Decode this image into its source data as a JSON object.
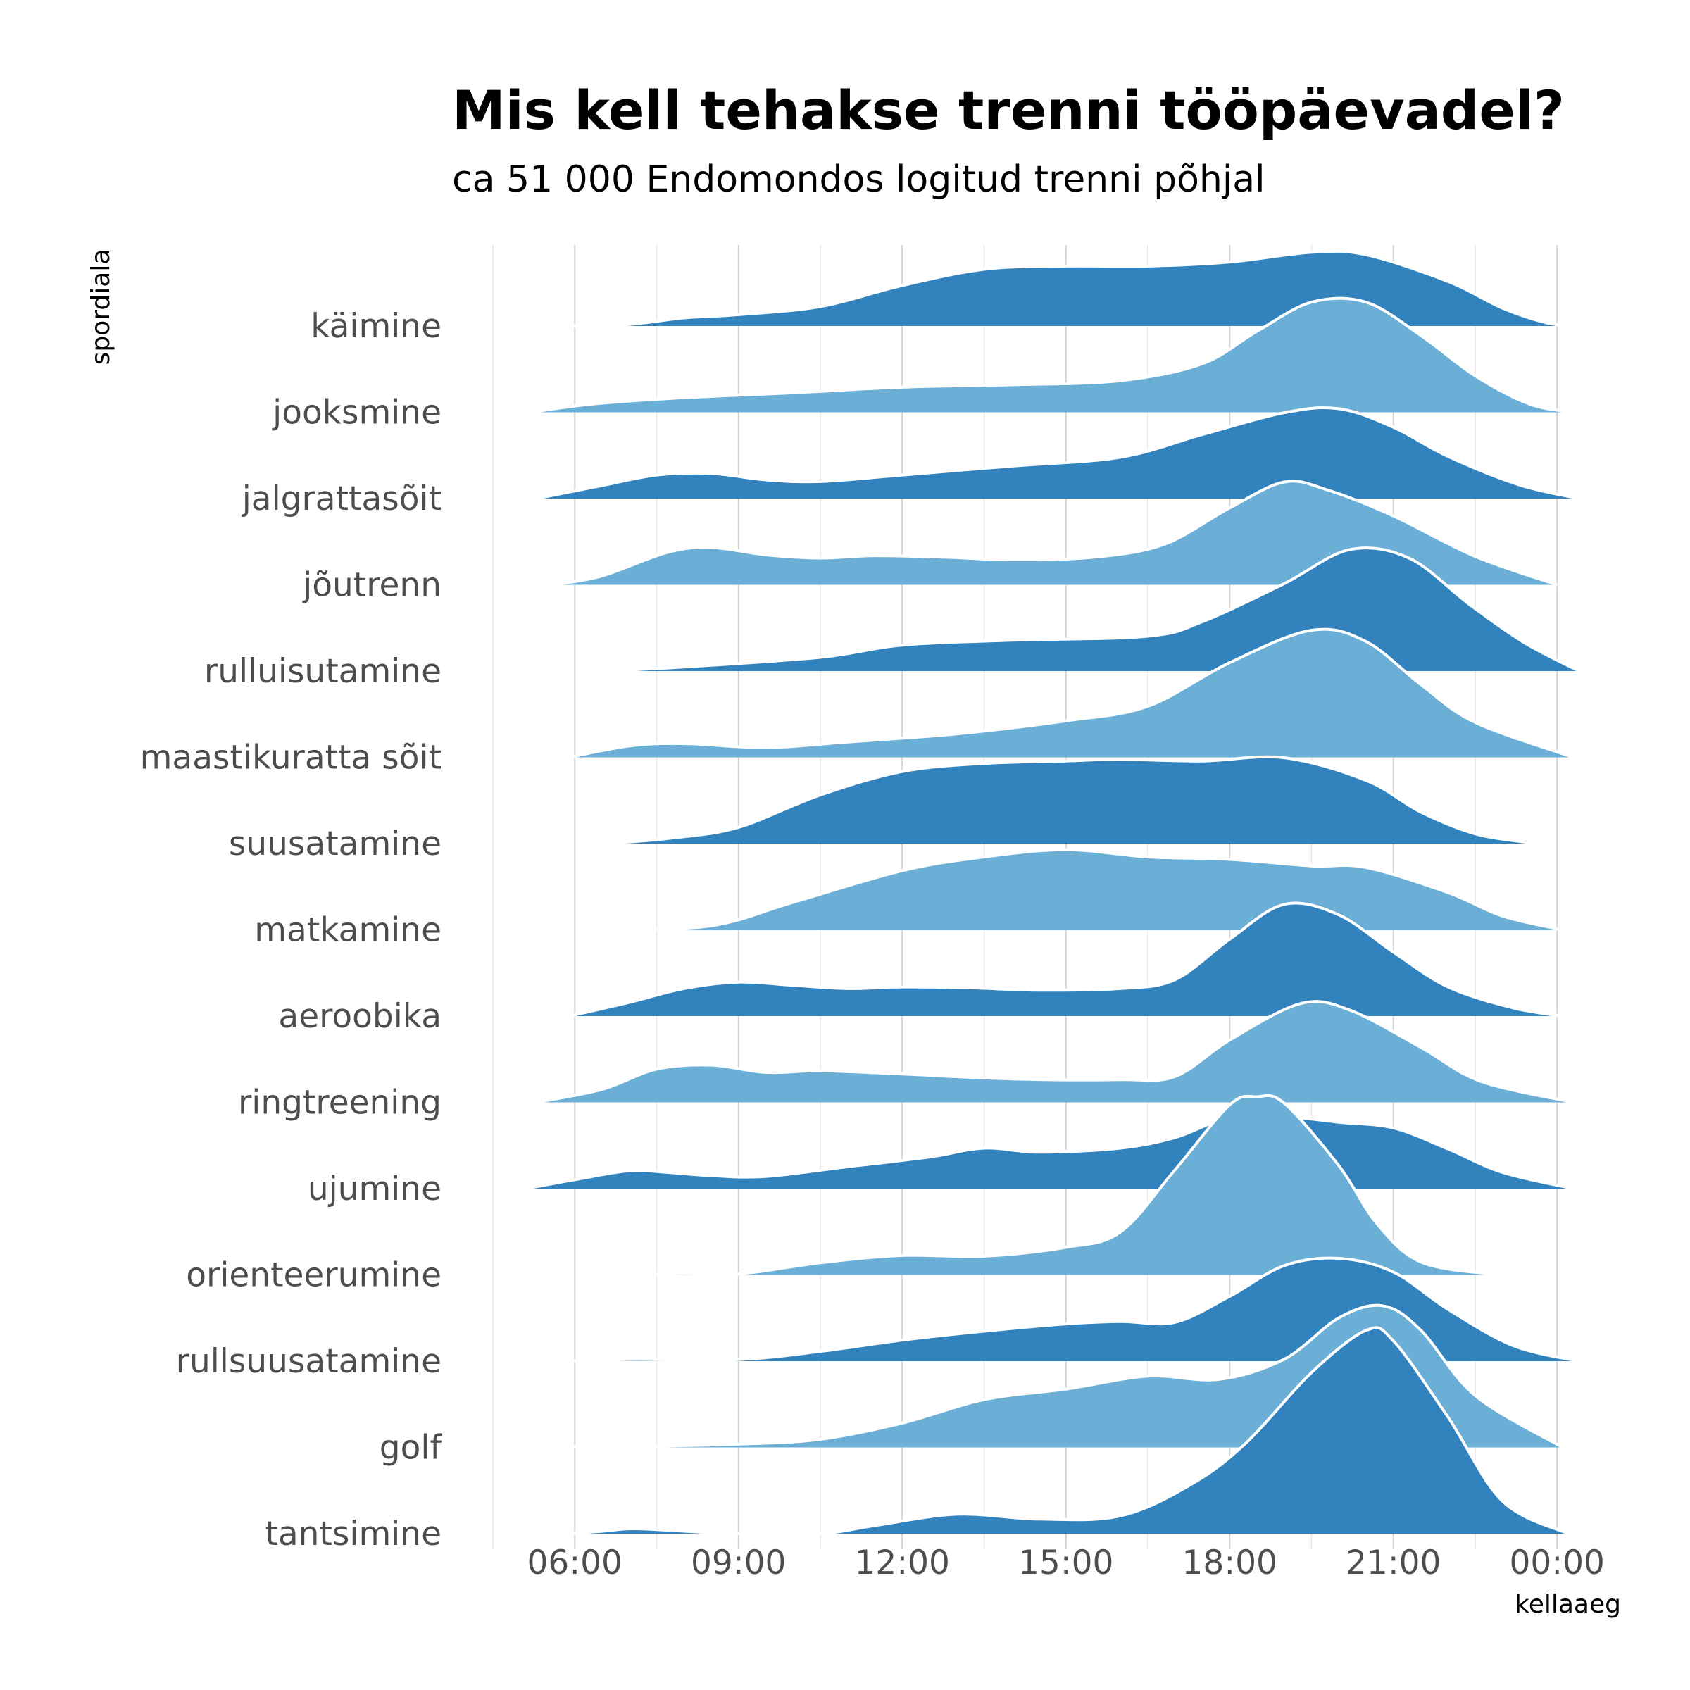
{
  "chart_data": {
    "type": "ridgeline",
    "title": "Mis kell tehakse trenni tööpäevadel?",
    "subtitle": "ca 51 000 Endomondos logitud trenni põhjal",
    "xlabel": "kellaaeg",
    "ylabel": "spordiala",
    "x_ticks": [
      "06:00",
      "09:00",
      "12:00",
      "15:00",
      "18:00",
      "21:00",
      "00:00"
    ],
    "x_tick_hours": [
      6,
      9,
      12,
      15,
      18,
      21,
      24
    ],
    "xlim_hours": [
      4.5,
      24.5
    ],
    "grid": true,
    "colors": {
      "dark": "#3182bd",
      "light": "#6baed6",
      "outline": "#ffffff"
    },
    "series": [
      {
        "name": "käimine",
        "fill": "dark",
        "points": [
          [
            5.9,
            0
          ],
          [
            7,
            0.02
          ],
          [
            8,
            0.1
          ],
          [
            9,
            0.14
          ],
          [
            10.5,
            0.24
          ],
          [
            12,
            0.5
          ],
          [
            13.5,
            0.7
          ],
          [
            15,
            0.74
          ],
          [
            16.5,
            0.74
          ],
          [
            18,
            0.79
          ],
          [
            19.5,
            0.91
          ],
          [
            20.5,
            0.88
          ],
          [
            22,
            0.55
          ],
          [
            23,
            0.22
          ],
          [
            23.8,
            0.04
          ],
          [
            24.3,
            0
          ]
        ]
      },
      {
        "name": "jooksmine",
        "fill": "light",
        "points": [
          [
            5.2,
            0
          ],
          [
            6.3,
            0.1
          ],
          [
            8,
            0.18
          ],
          [
            10,
            0.24
          ],
          [
            12,
            0.31
          ],
          [
            14,
            0.34
          ],
          [
            16,
            0.39
          ],
          [
            17.5,
            0.6
          ],
          [
            18.5,
            1.0
          ],
          [
            19.5,
            1.36
          ],
          [
            20.5,
            1.36
          ],
          [
            21.5,
            0.95
          ],
          [
            22.5,
            0.45
          ],
          [
            23.5,
            0.1
          ],
          [
            24.3,
            0
          ]
        ]
      },
      {
        "name": "jalgrattasõit",
        "fill": "dark",
        "points": [
          [
            5.3,
            0
          ],
          [
            6.5,
            0.16
          ],
          [
            7.5,
            0.29
          ],
          [
            8.5,
            0.31
          ],
          [
            9.5,
            0.23
          ],
          [
            10.5,
            0.21
          ],
          [
            12,
            0.29
          ],
          [
            14,
            0.4
          ],
          [
            16,
            0.51
          ],
          [
            17.5,
            0.79
          ],
          [
            19,
            1.06
          ],
          [
            20,
            1.11
          ],
          [
            21,
            0.88
          ],
          [
            22,
            0.52
          ],
          [
            23.3,
            0.17
          ],
          [
            24.4,
            0
          ]
        ]
      },
      {
        "name": "jõutrenn",
        "fill": "light",
        "points": [
          [
            5.6,
            0
          ],
          [
            6.5,
            0.11
          ],
          [
            7.7,
            0.4
          ],
          [
            8.5,
            0.46
          ],
          [
            9.5,
            0.37
          ],
          [
            10.5,
            0.33
          ],
          [
            11.5,
            0.36
          ],
          [
            12.8,
            0.34
          ],
          [
            14,
            0.31
          ],
          [
            15.5,
            0.34
          ],
          [
            16.8,
            0.5
          ],
          [
            18,
            0.95
          ],
          [
            19,
            1.27
          ],
          [
            19.8,
            1.17
          ],
          [
            21,
            0.85
          ],
          [
            22.5,
            0.35
          ],
          [
            24,
            0
          ]
        ]
      },
      {
        "name": "rulluisutamine",
        "fill": "dark",
        "points": [
          [
            6.6,
            0
          ],
          [
            8,
            0.05
          ],
          [
            10.5,
            0.17
          ],
          [
            12,
            0.32
          ],
          [
            14,
            0.38
          ],
          [
            16.5,
            0.43
          ],
          [
            17.5,
            0.61
          ],
          [
            19,
            1.08
          ],
          [
            20.2,
            1.5
          ],
          [
            21.3,
            1.39
          ],
          [
            22.4,
            0.82
          ],
          [
            23.4,
            0.35
          ],
          [
            24.4,
            0
          ]
        ]
      },
      {
        "name": "maastikuratta sõit",
        "fill": "light",
        "points": [
          [
            5.9,
            0
          ],
          [
            7,
            0.14
          ],
          [
            8,
            0.17
          ],
          [
            9.5,
            0.12
          ],
          [
            11,
            0.19
          ],
          [
            13,
            0.29
          ],
          [
            15,
            0.45
          ],
          [
            16.5,
            0.63
          ],
          [
            18,
            1.17
          ],
          [
            19.5,
            1.57
          ],
          [
            20.5,
            1.43
          ],
          [
            21.5,
            0.9
          ],
          [
            22.5,
            0.43
          ],
          [
            24.3,
            0
          ]
        ]
      },
      {
        "name": "suusatamine",
        "fill": "dark",
        "points": [
          [
            6.6,
            0
          ],
          [
            7.8,
            0.07
          ],
          [
            9,
            0.2
          ],
          [
            10.5,
            0.6
          ],
          [
            12,
            0.89
          ],
          [
            13.5,
            0.99
          ],
          [
            15,
            1.02
          ],
          [
            16,
            1.04
          ],
          [
            17.5,
            1.02
          ],
          [
            19,
            1.06
          ],
          [
            20.5,
            0.78
          ],
          [
            21.5,
            0.39
          ],
          [
            22.5,
            0.12
          ],
          [
            23.5,
            0.01
          ],
          [
            23.7,
            0
          ]
        ]
      },
      {
        "name": "matkamine",
        "fill": "light",
        "points": [
          [
            6.6,
            0
          ],
          [
            8.5,
            0.05
          ],
          [
            10,
            0.34
          ],
          [
            12,
            0.73
          ],
          [
            13.5,
            0.9
          ],
          [
            15,
            0.99
          ],
          [
            16.5,
            0.9
          ],
          [
            18,
            0.87
          ],
          [
            19.5,
            0.79
          ],
          [
            20.5,
            0.77
          ],
          [
            22,
            0.46
          ],
          [
            23,
            0.17
          ],
          [
            24.1,
            0
          ]
        ]
      },
      {
        "name": "aeroobika",
        "fill": "dark",
        "points": [
          [
            5.9,
            0
          ],
          [
            7,
            0.17
          ],
          [
            8,
            0.34
          ],
          [
            9,
            0.42
          ],
          [
            10,
            0.38
          ],
          [
            11,
            0.34
          ],
          [
            12,
            0.36
          ],
          [
            13.2,
            0.35
          ],
          [
            14.5,
            0.32
          ],
          [
            16,
            0.34
          ],
          [
            17,
            0.45
          ],
          [
            18,
            0.95
          ],
          [
            19,
            1.38
          ],
          [
            20,
            1.25
          ],
          [
            21,
            0.79
          ],
          [
            22,
            0.36
          ],
          [
            23.2,
            0.1
          ],
          [
            24.1,
            0
          ]
        ]
      },
      {
        "name": "ringtreening",
        "fill": "light",
        "points": [
          [
            5.3,
            0
          ],
          [
            6.5,
            0.16
          ],
          [
            7.5,
            0.41
          ],
          [
            8.5,
            0.46
          ],
          [
            9.5,
            0.37
          ],
          [
            10.5,
            0.39
          ],
          [
            12,
            0.35
          ],
          [
            14,
            0.29
          ],
          [
            16,
            0.28
          ],
          [
            17,
            0.32
          ],
          [
            18,
            0.77
          ],
          [
            19.3,
            1.22
          ],
          [
            20.2,
            1.14
          ],
          [
            21.5,
            0.68
          ],
          [
            22.6,
            0.26
          ],
          [
            24.3,
            0
          ]
        ]
      },
      {
        "name": "ujumine",
        "fill": "dark",
        "points": [
          [
            5.1,
            0
          ],
          [
            6,
            0.11
          ],
          [
            7,
            0.22
          ],
          [
            7.7,
            0.2
          ],
          [
            8.5,
            0.16
          ],
          [
            9.5,
            0.15
          ],
          [
            11,
            0.27
          ],
          [
            12.5,
            0.39
          ],
          [
            13.5,
            0.5
          ],
          [
            14.5,
            0.45
          ],
          [
            16,
            0.5
          ],
          [
            17,
            0.63
          ],
          [
            18,
            0.88
          ],
          [
            19,
            0.89
          ],
          [
            20,
            0.82
          ],
          [
            21,
            0.75
          ],
          [
            22,
            0.49
          ],
          [
            23,
            0.2
          ],
          [
            24.3,
            0
          ]
        ]
      },
      {
        "name": "orienteerumine",
        "fill": "light",
        "points": [
          [
            6.6,
            0
          ],
          [
            8,
            0.02
          ],
          [
            9,
            0.01
          ],
          [
            10.5,
            0.15
          ],
          [
            12,
            0.24
          ],
          [
            13.5,
            0.23
          ],
          [
            15,
            0.34
          ],
          [
            16,
            0.53
          ],
          [
            17,
            1.3
          ],
          [
            18,
            2.1
          ],
          [
            18.5,
            2.2
          ],
          [
            19,
            2.12
          ],
          [
            20,
            1.35
          ],
          [
            20.7,
            0.63
          ],
          [
            21.5,
            0.16
          ],
          [
            22.8,
            0.01
          ],
          [
            23.3,
            0
          ]
        ]
      },
      {
        "name": "rullsuusatamine",
        "fill": "dark",
        "points": [
          [
            5.9,
            0
          ],
          [
            7,
            0.02
          ],
          [
            9,
            0.02
          ],
          [
            10.5,
            0.12
          ],
          [
            12,
            0.26
          ],
          [
            13.5,
            0.37
          ],
          [
            15,
            0.46
          ],
          [
            16,
            0.49
          ],
          [
            17,
            0.48
          ],
          [
            18,
            0.8
          ],
          [
            19,
            1.18
          ],
          [
            20,
            1.27
          ],
          [
            21,
            1.1
          ],
          [
            22,
            0.64
          ],
          [
            23.2,
            0.19
          ],
          [
            24.4,
            0
          ]
        ]
      },
      {
        "name": "golf",
        "fill": "light",
        "points": [
          [
            5.0,
            0
          ],
          [
            6,
            0.01
          ],
          [
            7,
            0.01
          ],
          [
            9,
            0.04
          ],
          [
            10.5,
            0.1
          ],
          [
            12,
            0.3
          ],
          [
            13.5,
            0.59
          ],
          [
            15,
            0.72
          ],
          [
            16.5,
            0.88
          ],
          [
            17.8,
            0.84
          ],
          [
            19,
            1.09
          ],
          [
            20,
            1.6
          ],
          [
            20.8,
            1.75
          ],
          [
            21.5,
            1.45
          ],
          [
            22.5,
            0.64
          ],
          [
            24.1,
            0
          ]
        ]
      },
      {
        "name": "tantsimine",
        "fill": "dark",
        "points": [
          [
            5.9,
            0
          ],
          [
            6.5,
            0.03
          ],
          [
            7,
            0.06
          ],
          [
            7.5,
            0.05
          ],
          [
            8.5,
            0.01
          ],
          [
            9,
            0
          ],
          [
            10.5,
            0
          ],
          [
            11.5,
            0.1
          ],
          [
            13,
            0.24
          ],
          [
            14.5,
            0.18
          ],
          [
            16,
            0.22
          ],
          [
            17.3,
            0.61
          ],
          [
            18.3,
            1.12
          ],
          [
            19.5,
            1.99
          ],
          [
            20.5,
            2.51
          ],
          [
            21,
            2.38
          ],
          [
            22,
            1.44
          ],
          [
            23,
            0.4
          ],
          [
            24.2,
            0
          ]
        ]
      }
    ]
  }
}
